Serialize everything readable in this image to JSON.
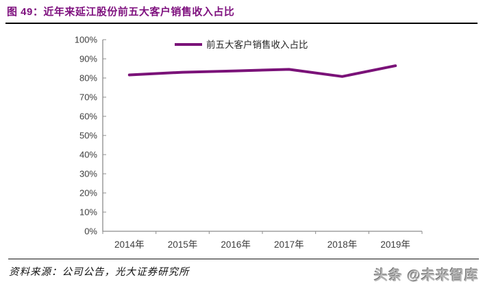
{
  "header": {
    "figure_title": "图 49：近年来延江股份前五大客户销售收入占比"
  },
  "chart_data": {
    "type": "line",
    "title": "近年来延江股份前五大客户销售收入占比",
    "categories": [
      "2014年",
      "2015年",
      "2016年",
      "2017年",
      "2018年",
      "2019年"
    ],
    "series": [
      {
        "name": "前五大客户销售收入占比",
        "values": [
          81.6,
          83.0,
          83.7,
          84.5,
          80.8,
          86.4
        ],
        "color": "#7A1278"
      }
    ],
    "xlabel": "",
    "ylabel": "",
    "ylim": [
      0,
      100
    ],
    "ytick_step": 10,
    "ytick_suffix": "%",
    "grid": false,
    "legend_position": "top-center",
    "axis_color": "#8C8C8C",
    "tick_label_color": "#3D3D3D",
    "legend_text_color": "#262626"
  },
  "footer": {
    "source": "资料来源：公司公告，光大证券研究所",
    "watermark": "头条 @未来智库"
  }
}
